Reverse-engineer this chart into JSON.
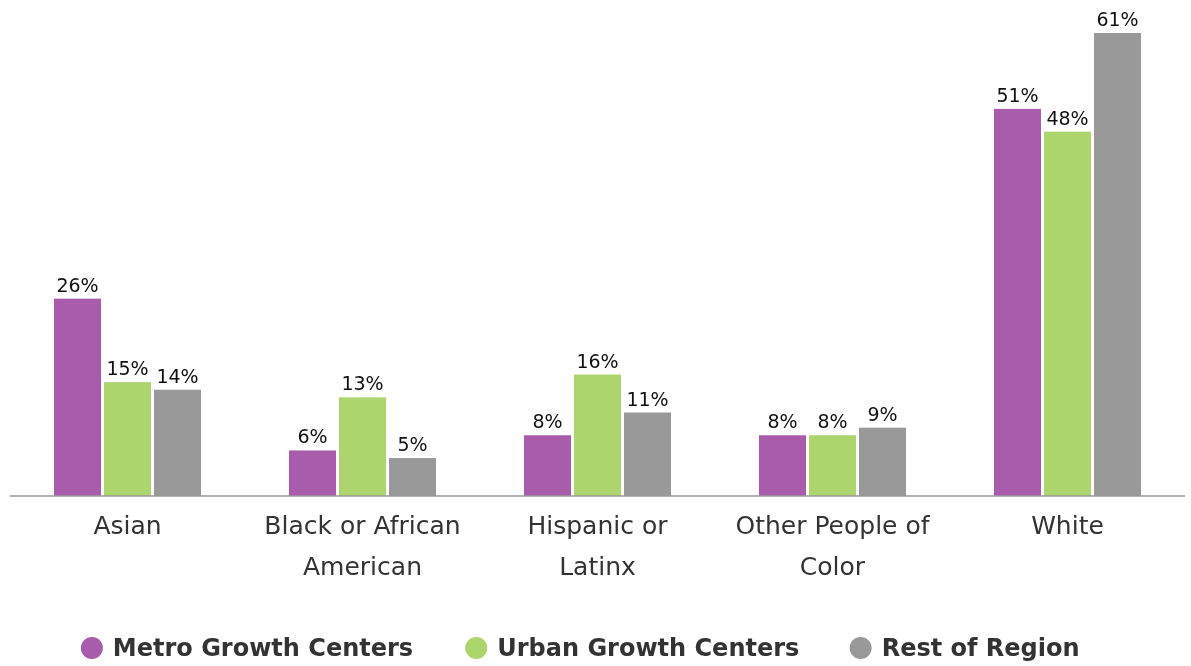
{
  "chart_data": {
    "type": "bar",
    "categories": [
      "Asian",
      "Black or African American",
      "Hispanic or Latinx",
      "Other People of Color",
      "White"
    ],
    "series": [
      {
        "name": "Metro Growth Centers",
        "color": "#a95cab",
        "values": [
          26,
          6,
          8,
          8,
          51
        ],
        "value_labels": [
          "26%",
          "6%",
          "8%",
          "8%",
          "51%"
        ]
      },
      {
        "name": "Urban Growth Centers",
        "color": "#acd56d",
        "values": [
          15,
          13,
          16,
          8,
          48
        ],
        "value_labels": [
          "15%",
          "13%",
          "16%",
          "8%",
          "48%"
        ]
      },
      {
        "name": "Rest of Region",
        "color": "#999999",
        "values": [
          14,
          5,
          11,
          9,
          61
        ],
        "value_labels": [
          "14%",
          "5%",
          "11%",
          "9%",
          "61%"
        ]
      }
    ],
    "legend": "bottom"
  }
}
